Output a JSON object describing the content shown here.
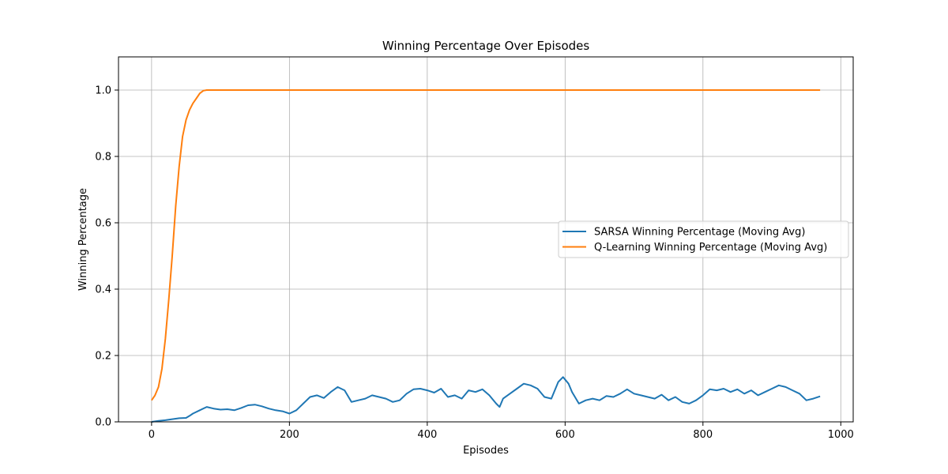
{
  "chart_data": {
    "type": "line",
    "title": "Winning Percentage Over Episodes",
    "xlabel": "Episodes",
    "ylabel": "Winning Percentage",
    "xlim": [
      -48,
      1018
    ],
    "ylim": [
      0,
      1.1
    ],
    "xticks": [
      0,
      200,
      400,
      600,
      800,
      1000
    ],
    "yticks": [
      0.0,
      0.2,
      0.4,
      0.6,
      0.8,
      1.0
    ],
    "grid": true,
    "legend_position": "center-right",
    "series": [
      {
        "name": "SARSA Winning Percentage (Moving Avg)",
        "color": "#1f77b4",
        "x": [
          0,
          10,
          20,
          30,
          40,
          50,
          55,
          60,
          70,
          80,
          90,
          100,
          110,
          120,
          130,
          140,
          150,
          160,
          170,
          180,
          190,
          200,
          210,
          220,
          230,
          240,
          250,
          260,
          270,
          280,
          290,
          300,
          310,
          320,
          330,
          340,
          350,
          360,
          370,
          380,
          390,
          400,
          410,
          420,
          430,
          440,
          450,
          460,
          470,
          480,
          490,
          500,
          505,
          510,
          520,
          530,
          540,
          550,
          560,
          570,
          580,
          590,
          597,
          605,
          610,
          620,
          630,
          640,
          650,
          660,
          670,
          680,
          690,
          700,
          710,
          720,
          730,
          740,
          750,
          760,
          770,
          780,
          790,
          800,
          810,
          820,
          830,
          840,
          850,
          860,
          870,
          880,
          890,
          900,
          910,
          920,
          930,
          940,
          950,
          960,
          970
        ],
        "y": [
          0.0,
          0.003,
          0.005,
          0.008,
          0.011,
          0.012,
          0.018,
          0.025,
          0.035,
          0.045,
          0.04,
          0.037,
          0.038,
          0.035,
          0.042,
          0.05,
          0.052,
          0.047,
          0.04,
          0.035,
          0.032,
          0.025,
          0.035,
          0.055,
          0.075,
          0.08,
          0.072,
          0.09,
          0.105,
          0.095,
          0.06,
          0.065,
          0.07,
          0.08,
          0.075,
          0.07,
          0.06,
          0.065,
          0.085,
          0.098,
          0.1,
          0.095,
          0.088,
          0.1,
          0.075,
          0.08,
          0.07,
          0.095,
          0.09,
          0.098,
          0.08,
          0.055,
          0.045,
          0.07,
          0.085,
          0.1,
          0.115,
          0.11,
          0.1,
          0.075,
          0.07,
          0.12,
          0.135,
          0.115,
          0.09,
          0.055,
          0.065,
          0.07,
          0.065,
          0.078,
          0.075,
          0.085,
          0.098,
          0.085,
          0.08,
          0.075,
          0.07,
          0.082,
          0.065,
          0.075,
          0.06,
          0.055,
          0.065,
          0.08,
          0.098,
          0.095,
          0.1,
          0.09,
          0.098,
          0.085,
          0.095,
          0.08,
          0.09,
          0.1,
          0.11,
          0.105,
          0.095,
          0.085,
          0.065,
          0.07,
          0.077
        ]
      },
      {
        "name": "Q-Learning Winning Percentage (Moving Avg)",
        "color": "#ff7f0e",
        "x": [
          0,
          5,
          10,
          15,
          20,
          25,
          30,
          35,
          40,
          45,
          50,
          55,
          60,
          65,
          70,
          75,
          80,
          90,
          100,
          200,
          300,
          400,
          500,
          600,
          700,
          800,
          900,
          970
        ],
        "y": [
          0.065,
          0.08,
          0.105,
          0.16,
          0.25,
          0.37,
          0.5,
          0.65,
          0.77,
          0.86,
          0.91,
          0.94,
          0.96,
          0.975,
          0.99,
          0.998,
          1.0,
          1.0,
          1.0,
          1.0,
          1.0,
          1.0,
          1.0,
          1.0,
          1.0,
          1.0,
          1.0,
          1.0
        ]
      }
    ]
  }
}
